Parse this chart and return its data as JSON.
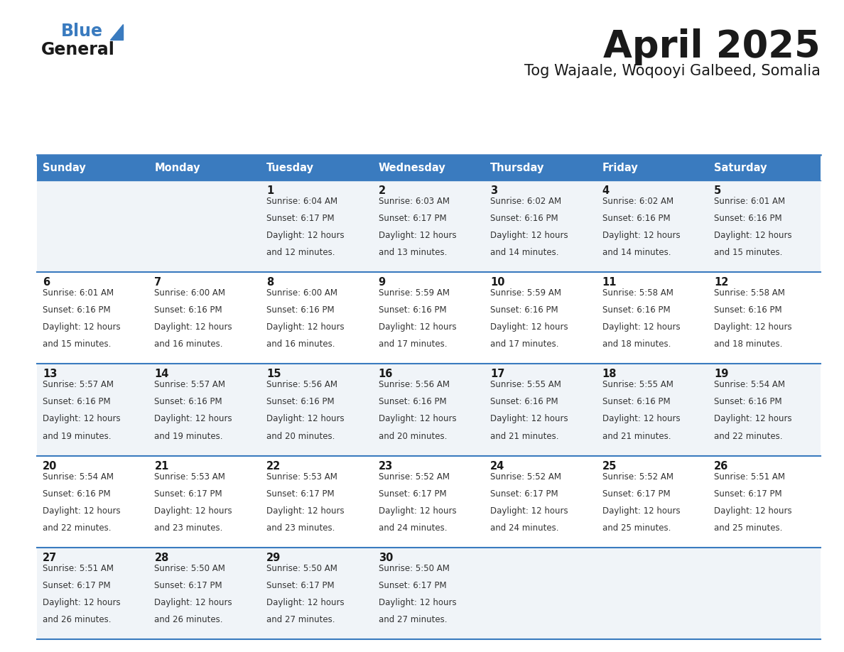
{
  "title": "April 2025",
  "subtitle": "Tog Wajaale, Woqooyi Galbeed, Somalia",
  "header_color": "#3a7bbf",
  "header_text_color": "#ffffff",
  "background_color": "#ffffff",
  "cell_bg_even": "#f0f4f8",
  "cell_bg_odd": "#ffffff",
  "day_names": [
    "Sunday",
    "Monday",
    "Tuesday",
    "Wednesday",
    "Thursday",
    "Friday",
    "Saturday"
  ],
  "days": [
    {
      "day": 1,
      "col": 2,
      "row": 0,
      "sunrise": "6:04 AM",
      "sunset": "6:17 PM",
      "daylight": "12 hours and 12 minutes."
    },
    {
      "day": 2,
      "col": 3,
      "row": 0,
      "sunrise": "6:03 AM",
      "sunset": "6:17 PM",
      "daylight": "12 hours and 13 minutes."
    },
    {
      "day": 3,
      "col": 4,
      "row": 0,
      "sunrise": "6:02 AM",
      "sunset": "6:16 PM",
      "daylight": "12 hours and 14 minutes."
    },
    {
      "day": 4,
      "col": 5,
      "row": 0,
      "sunrise": "6:02 AM",
      "sunset": "6:16 PM",
      "daylight": "12 hours and 14 minutes."
    },
    {
      "day": 5,
      "col": 6,
      "row": 0,
      "sunrise": "6:01 AM",
      "sunset": "6:16 PM",
      "daylight": "12 hours and 15 minutes."
    },
    {
      "day": 6,
      "col": 0,
      "row": 1,
      "sunrise": "6:01 AM",
      "sunset": "6:16 PM",
      "daylight": "12 hours and 15 minutes."
    },
    {
      "day": 7,
      "col": 1,
      "row": 1,
      "sunrise": "6:00 AM",
      "sunset": "6:16 PM",
      "daylight": "12 hours and 16 minutes."
    },
    {
      "day": 8,
      "col": 2,
      "row": 1,
      "sunrise": "6:00 AM",
      "sunset": "6:16 PM",
      "daylight": "12 hours and 16 minutes."
    },
    {
      "day": 9,
      "col": 3,
      "row": 1,
      "sunrise": "5:59 AM",
      "sunset": "6:16 PM",
      "daylight": "12 hours and 17 minutes."
    },
    {
      "day": 10,
      "col": 4,
      "row": 1,
      "sunrise": "5:59 AM",
      "sunset": "6:16 PM",
      "daylight": "12 hours and 17 minutes."
    },
    {
      "day": 11,
      "col": 5,
      "row": 1,
      "sunrise": "5:58 AM",
      "sunset": "6:16 PM",
      "daylight": "12 hours and 18 minutes."
    },
    {
      "day": 12,
      "col": 6,
      "row": 1,
      "sunrise": "5:58 AM",
      "sunset": "6:16 PM",
      "daylight": "12 hours and 18 minutes."
    },
    {
      "day": 13,
      "col": 0,
      "row": 2,
      "sunrise": "5:57 AM",
      "sunset": "6:16 PM",
      "daylight": "12 hours and 19 minutes."
    },
    {
      "day": 14,
      "col": 1,
      "row": 2,
      "sunrise": "5:57 AM",
      "sunset": "6:16 PM",
      "daylight": "12 hours and 19 minutes."
    },
    {
      "day": 15,
      "col": 2,
      "row": 2,
      "sunrise": "5:56 AM",
      "sunset": "6:16 PM",
      "daylight": "12 hours and 20 minutes."
    },
    {
      "day": 16,
      "col": 3,
      "row": 2,
      "sunrise": "5:56 AM",
      "sunset": "6:16 PM",
      "daylight": "12 hours and 20 minutes."
    },
    {
      "day": 17,
      "col": 4,
      "row": 2,
      "sunrise": "5:55 AM",
      "sunset": "6:16 PM",
      "daylight": "12 hours and 21 minutes."
    },
    {
      "day": 18,
      "col": 5,
      "row": 2,
      "sunrise": "5:55 AM",
      "sunset": "6:16 PM",
      "daylight": "12 hours and 21 minutes."
    },
    {
      "day": 19,
      "col": 6,
      "row": 2,
      "sunrise": "5:54 AM",
      "sunset": "6:16 PM",
      "daylight": "12 hours and 22 minutes."
    },
    {
      "day": 20,
      "col": 0,
      "row": 3,
      "sunrise": "5:54 AM",
      "sunset": "6:16 PM",
      "daylight": "12 hours and 22 minutes."
    },
    {
      "day": 21,
      "col": 1,
      "row": 3,
      "sunrise": "5:53 AM",
      "sunset": "6:17 PM",
      "daylight": "12 hours and 23 minutes."
    },
    {
      "day": 22,
      "col": 2,
      "row": 3,
      "sunrise": "5:53 AM",
      "sunset": "6:17 PM",
      "daylight": "12 hours and 23 minutes."
    },
    {
      "day": 23,
      "col": 3,
      "row": 3,
      "sunrise": "5:52 AM",
      "sunset": "6:17 PM",
      "daylight": "12 hours and 24 minutes."
    },
    {
      "day": 24,
      "col": 4,
      "row": 3,
      "sunrise": "5:52 AM",
      "sunset": "6:17 PM",
      "daylight": "12 hours and 24 minutes."
    },
    {
      "day": 25,
      "col": 5,
      "row": 3,
      "sunrise": "5:52 AM",
      "sunset": "6:17 PM",
      "daylight": "12 hours and 25 minutes."
    },
    {
      "day": 26,
      "col": 6,
      "row": 3,
      "sunrise": "5:51 AM",
      "sunset": "6:17 PM",
      "daylight": "12 hours and 25 minutes."
    },
    {
      "day": 27,
      "col": 0,
      "row": 4,
      "sunrise": "5:51 AM",
      "sunset": "6:17 PM",
      "daylight": "12 hours and 26 minutes."
    },
    {
      "day": 28,
      "col": 1,
      "row": 4,
      "sunrise": "5:50 AM",
      "sunset": "6:17 PM",
      "daylight": "12 hours and 26 minutes."
    },
    {
      "day": 29,
      "col": 2,
      "row": 4,
      "sunrise": "5:50 AM",
      "sunset": "6:17 PM",
      "daylight": "12 hours and 27 minutes."
    },
    {
      "day": 30,
      "col": 3,
      "row": 4,
      "sunrise": "5:50 AM",
      "sunset": "6:17 PM",
      "daylight": "12 hours and 27 minutes."
    }
  ],
  "num_rows": 5,
  "num_cols": 7,
  "divider_color": "#3a7bbf",
  "text_color": "#1a1a1a",
  "small_text_color": "#333333",
  "logo_general_color": "#1a1a1a",
  "logo_blue_color": "#3a7bbf",
  "logo_triangle_color": "#3a7bbf"
}
